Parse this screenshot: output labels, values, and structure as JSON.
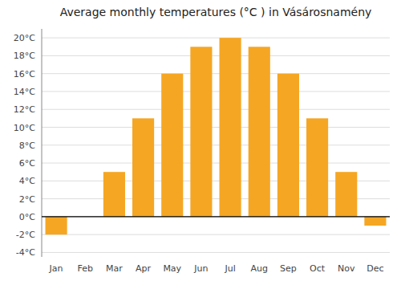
{
  "chart_data": {
    "type": "bar",
    "title": "Average monthly temperatures (°C ) in Vásárosnamény",
    "categories": [
      "Jan",
      "Feb",
      "Mar",
      "Apr",
      "May",
      "Jun",
      "Jul",
      "Aug",
      "Sep",
      "Oct",
      "Nov",
      "Dec"
    ],
    "values": [
      -2.0,
      0.0,
      5.0,
      11.0,
      16.0,
      19.0,
      20.0,
      19.0,
      16.0,
      11.0,
      5.0,
      -1.0
    ],
    "color": "#F5A623",
    "ylim": [
      -4.5,
      21.0
    ],
    "yticks": [
      {
        "value": -4,
        "label": "-4°C"
      },
      {
        "value": -2,
        "label": "-2°C"
      },
      {
        "value": 0,
        "label": "0°C"
      },
      {
        "value": 2,
        "label": "2°C"
      },
      {
        "value": 4,
        "label": "4°C"
      },
      {
        "value": 6,
        "label": "6°C"
      },
      {
        "value": 8,
        "label": "8°C"
      },
      {
        "value": 10,
        "label": "10°C"
      },
      {
        "value": 12,
        "label": "12°C"
      },
      {
        "value": 14,
        "label": "14°C"
      },
      {
        "value": 16,
        "label": "16°C"
      },
      {
        "value": 18,
        "label": "18°C"
      },
      {
        "value": 20,
        "label": "20°C"
      }
    ],
    "grid": true
  }
}
